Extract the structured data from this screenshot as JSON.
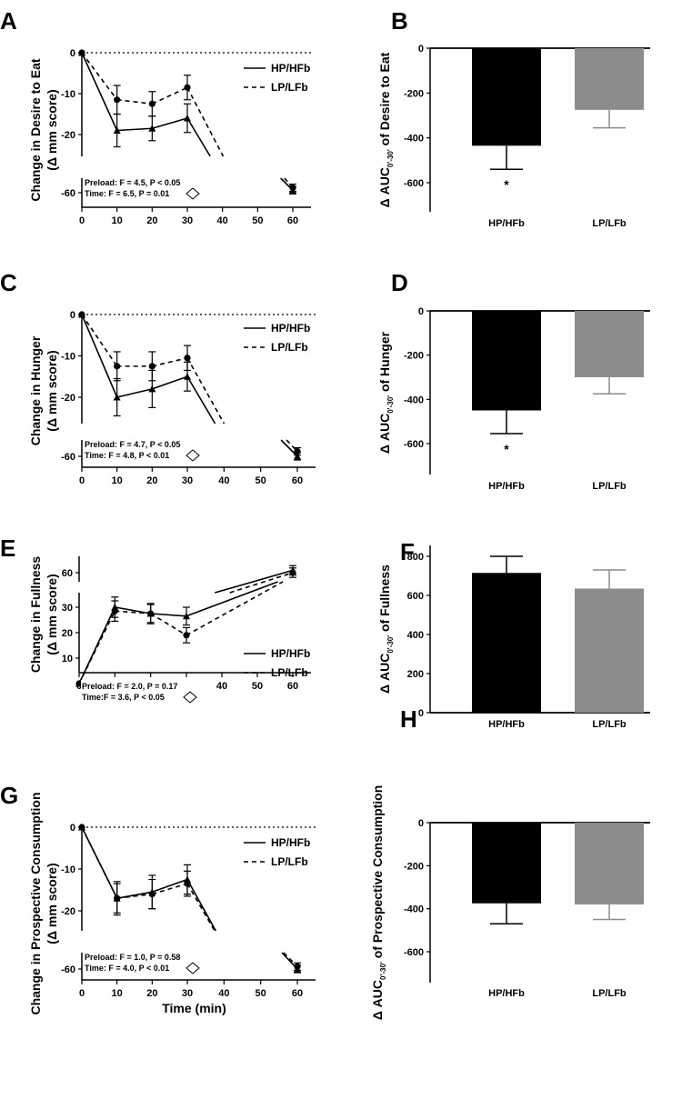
{
  "chart_data": [
    {
      "panel": "A",
      "type": "line",
      "ylabel_line1": "Change in Desire to Eat",
      "ylabel_line2": "(Δ mm score)",
      "xticks": [
        "0",
        "10",
        "20",
        "30",
        "40",
        "50",
        "60"
      ],
      "yticks_upper": [
        "0",
        "-10",
        "-20"
      ],
      "yticks_lower": [
        "-60"
      ],
      "series": [
        {
          "name": "HP/HFb",
          "style": "solid",
          "marker": "triangle",
          "x": [
            0,
            10,
            20,
            30,
            60
          ],
          "y": [
            0,
            -19,
            -18.5,
            -16,
            -59
          ],
          "err": [
            0,
            4,
            3,
            3.5,
            1.5
          ]
        },
        {
          "name": "LP/LFb",
          "style": "dashed",
          "marker": "circle",
          "x": [
            0,
            10,
            20,
            30,
            60
          ],
          "y": [
            0,
            -11.5,
            -12.5,
            -8.5,
            -58
          ],
          "err": [
            0,
            3.5,
            3,
            3,
            1.5
          ]
        }
      ],
      "stats": {
        "preload": "Preload: F = 4.5, P < 0.05",
        "time": "Time: F = 6.5, P = 0.01"
      }
    },
    {
      "panel": "B",
      "type": "bar",
      "ylabel_main": "Δ AUC",
      "ylabel_sub": "0'-30'",
      "ylabel_rest": " of Desire to Eat",
      "categories": [
        "HP/HFb",
        "LP/LFb"
      ],
      "values": [
        -435,
        -275
      ],
      "errors": [
        105,
        80
      ],
      "colors": [
        "#000000",
        "#8c8c8c"
      ],
      "ylim": [
        -650,
        0
      ],
      "yticks": [
        "0",
        "-200",
        "-400",
        "-600"
      ],
      "significance": [
        "*",
        ""
      ]
    },
    {
      "panel": "C",
      "type": "line",
      "ylabel_line1": "Change in Hunger",
      "ylabel_line2": "(Δ mm score)",
      "xticks": [
        "0",
        "10",
        "20",
        "30",
        "40",
        "50",
        "60"
      ],
      "yticks_upper": [
        "0",
        "-10",
        "-20"
      ],
      "yticks_lower": [
        "-60"
      ],
      "series": [
        {
          "name": "HP/HFb",
          "style": "solid",
          "marker": "triangle",
          "x": [
            0,
            10,
            20,
            30,
            60
          ],
          "y": [
            0,
            -20,
            -18,
            -15,
            -60
          ],
          "err": [
            0,
            4.5,
            4.5,
            3.5,
            1.5
          ]
        },
        {
          "name": "LP/LFb",
          "style": "dashed",
          "marker": "circle",
          "x": [
            0,
            10,
            20,
            30,
            60
          ],
          "y": [
            0,
            -12.5,
            -12.5,
            -10.5,
            -58
          ],
          "err": [
            0,
            3.5,
            3.5,
            3,
            1.5
          ]
        }
      ],
      "stats": {
        "preload": "Preload: F = 4.7, P < 0.05",
        "time": "Time: F = 4.8, P < 0.01"
      }
    },
    {
      "panel": "D",
      "type": "bar",
      "ylabel_main": "Δ AUC",
      "ylabel_sub": "0'-30'",
      "ylabel_rest": " of Hunger",
      "categories": [
        "HP/HFb",
        "LP/LFb"
      ],
      "values": [
        -450,
        -300
      ],
      "errors": [
        105,
        75
      ],
      "colors": [
        "#000000",
        "#8c8c8c"
      ],
      "ylim": [
        -650,
        0
      ],
      "yticks": [
        "0",
        "-200",
        "-400",
        "-600"
      ],
      "significance": [
        "*",
        ""
      ]
    },
    {
      "panel": "E",
      "type": "line",
      "ylabel_line1": "Change in Fullness",
      "ylabel_line2": "(Δ mm score)",
      "xticks": [
        "0",
        "10",
        "20",
        "30",
        "40",
        "50",
        "60"
      ],
      "yticks_upper": [
        "60"
      ],
      "yticks_lower": [
        "30",
        "20",
        "10"
      ],
      "series": [
        {
          "name": "HP/HFb",
          "style": "solid",
          "marker": "triangle",
          "x": [
            0,
            10,
            20,
            30,
            60
          ],
          "y": [
            0,
            30,
            27.5,
            26.5,
            61
          ],
          "err": [
            0,
            4,
            4,
            3.5,
            2
          ]
        },
        {
          "name": "LP/LFb",
          "style": "dashed",
          "marker": "circle",
          "x": [
            0,
            10,
            20,
            30,
            60
          ],
          "y": [
            0,
            28.5,
            27.5,
            19,
            60
          ],
          "err": [
            0,
            4,
            3.5,
            3,
            2
          ]
        }
      ],
      "stats": {
        "preload": "Preload: F = 2.0, P = 0.17",
        "time": "Time:F = 3.6, P < 0.05"
      }
    },
    {
      "panel": "F",
      "type": "bar",
      "ylabel_main": "Δ AUC",
      "ylabel_sub": "0'-30'",
      "ylabel_rest": " of Fullness",
      "categories": [
        "HP/HFb",
        "LP/LFb"
      ],
      "values": [
        715,
        635
      ],
      "errors": [
        85,
        95
      ],
      "colors": [
        "#000000",
        "#8c8c8c"
      ],
      "ylim": [
        0,
        900
      ],
      "yticks": [
        "0",
        "200",
        "400",
        "600",
        "800"
      ],
      "significance": [
        "",
        ""
      ]
    },
    {
      "panel": "G",
      "type": "line",
      "ylabel_line1": "Change in Prospective Consumption",
      "ylabel_line2": "(Δ mm score)",
      "xlabel": "Time (min)",
      "xticks": [
        "0",
        "10",
        "20",
        "30",
        "40",
        "50",
        "60"
      ],
      "yticks_upper": [
        "0",
        "-10",
        "-20"
      ],
      "yticks_lower": [
        "-60"
      ],
      "series": [
        {
          "name": "HP/HFb",
          "style": "solid",
          "marker": "triangle",
          "x": [
            0,
            10,
            20,
            30,
            60
          ],
          "y": [
            0,
            -17,
            -15.5,
            -12.5,
            -60
          ],
          "err": [
            0,
            4,
            4,
            3.5,
            1.5
          ]
        },
        {
          "name": "LP/LFb",
          "style": "dashed",
          "marker": "circle",
          "x": [
            0,
            10,
            20,
            30,
            60
          ],
          "y": [
            0,
            -17,
            -16,
            -13.5,
            -59
          ],
          "err": [
            0,
            3.5,
            3.5,
            3,
            1.5
          ]
        }
      ],
      "stats": {
        "preload": "Preload: F = 1.0, P = 0.58",
        "time": "Time: F = 4.0, P < 0.01"
      }
    },
    {
      "panel": "H",
      "type": "bar",
      "ylabel_main": "Δ AUC",
      "ylabel_sub": "0'-30'",
      "ylabel_rest": " of Prospective Consumption",
      "categories": [
        "HP/HFb",
        "LP/LFb"
      ],
      "values": [
        -375,
        -380
      ],
      "errors": [
        95,
        70
      ],
      "colors": [
        "#000000",
        "#8c8c8c"
      ],
      "ylim": [
        -650,
        0
      ],
      "yticks": [
        "0",
        "-200",
        "-400",
        "-600"
      ],
      "significance": [
        "",
        ""
      ]
    }
  ]
}
